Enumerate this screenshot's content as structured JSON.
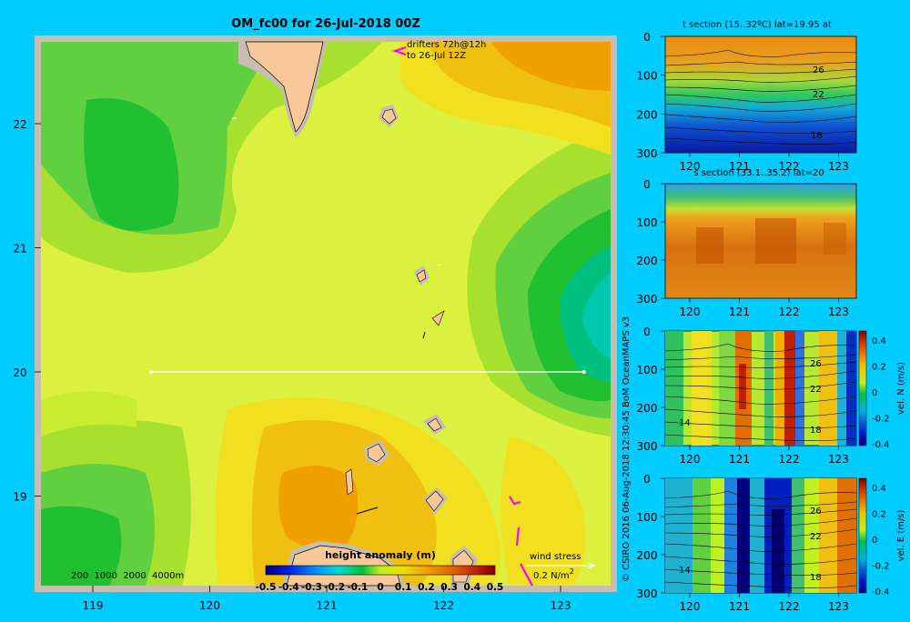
{
  "title": "OM_fc00 for 26-Jul-2018 00Z",
  "colors": {
    "background": "#00ccff",
    "land": "#f9c898",
    "frame": "#c8bdb0"
  },
  "map": {
    "x_ticks": [
      "119",
      "120",
      "121",
      "122",
      "123"
    ],
    "y_ticks": [
      "22",
      "21",
      "20",
      "19"
    ],
    "depth_legend": "200  1000  2000  4000m",
    "drifters_line1": "drifters 72h@12h",
    "drifters_line2": "to 26-Jul 12Z",
    "wind_label": "wind stress",
    "wind_scale": "0.2 N/m",
    "wind_scale_sup": "2",
    "section_line_lat": 20,
    "section_line_lon": [
      119.5,
      123.2
    ]
  },
  "colorbar": {
    "title": "height anomaly  (m)",
    "ticks": [
      "-0.5",
      "-0.4",
      "-0.3",
      "-0.2",
      "-0.1",
      "0",
      "0.1",
      "0.2",
      "0.3",
      "0.4",
      "0.5"
    ]
  },
  "credit": "© CSIRO 2016   06-Aug-2018 12:30:45 BoM OceanMAPS v3",
  "panels": [
    {
      "title": "t section (15..32ºC) lat=19.95 at",
      "y_ticks": [
        "0",
        "100",
        "200",
        "300"
      ],
      "x_ticks": [
        "120",
        "121",
        "122",
        "123"
      ],
      "contours": [
        "26",
        "22",
        "18"
      ]
    },
    {
      "title": "s section (33.1..35.2) lat=20",
      "y_ticks": [
        "0",
        "100",
        "200",
        "300"
      ],
      "x_ticks": [
        "120",
        "121",
        "122",
        "123"
      ],
      "contours": []
    },
    {
      "title": "",
      "y_ticks": [
        "0",
        "100",
        "200",
        "300"
      ],
      "x_ticks": [
        "120",
        "121",
        "122",
        "123"
      ],
      "contours": [
        "26",
        "22",
        "14",
        "18"
      ],
      "cbar_ticks": [
        "0.4",
        "0.2",
        "0",
        "-0.2",
        "-0.4"
      ],
      "cbar_label": "vel. N  (m/s)"
    },
    {
      "title": "",
      "y_ticks": [
        "0",
        "100",
        "200",
        "300"
      ],
      "x_ticks": [
        "120",
        "121",
        "122",
        "123"
      ],
      "contours": [
        "26",
        "22",
        "14",
        "18"
      ],
      "cbar_ticks": [
        "0.4",
        "0.2",
        "0",
        "-0.2",
        "-0.4"
      ],
      "cbar_label": "vel. E  (m/s)"
    }
  ]
}
